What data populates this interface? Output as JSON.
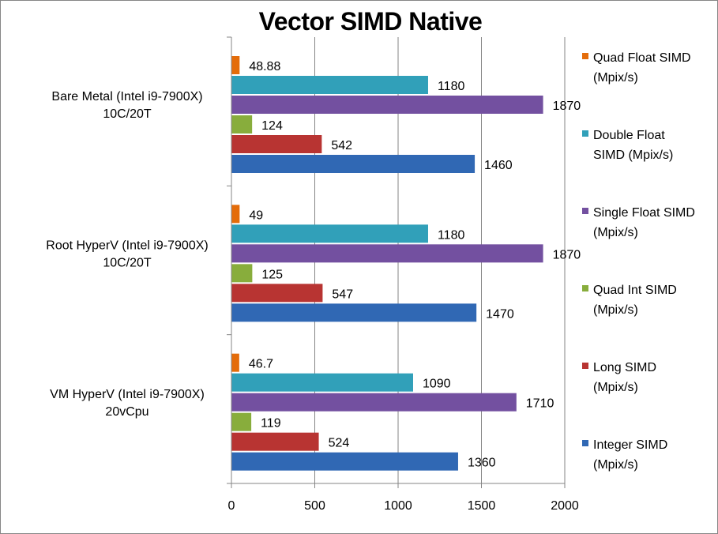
{
  "chart_data": {
    "type": "bar",
    "orientation": "horizontal",
    "title": "Vector SIMD Native",
    "xlabel": "",
    "ylabel": "",
    "xlim": [
      0,
      2000
    ],
    "xticks": [
      0,
      500,
      1000,
      1500,
      2000
    ],
    "grid": "vertical-major",
    "legend_position": "right",
    "categories": [
      {
        "lines": [
          "Bare Metal (Intel i9-7900X)",
          "10C/20T"
        ]
      },
      {
        "lines": [
          "Root HyperV (Intel i9-7900X)",
          "10C/20T"
        ]
      },
      {
        "lines": [
          "VM HyperV (Intel i9-7900X)",
          "20vCpu"
        ]
      }
    ],
    "series": [
      {
        "name": "Quad Float SIMD (Mpix/s)",
        "legend_lines": [
          "Quad Float SIMD",
          "(Mpix/s)"
        ],
        "color": "#E46C0A",
        "values": [
          48.88,
          49,
          46.7
        ],
        "labels": [
          "48.88",
          "49",
          "46.7"
        ]
      },
      {
        "name": "Double Float SIMD (Mpix/s)",
        "legend_lines": [
          "Double Float",
          "SIMD (Mpix/s)"
        ],
        "color": "#31A0B9",
        "values": [
          1180,
          1180,
          1090
        ],
        "labels": [
          "1180",
          "1180",
          "1090"
        ]
      },
      {
        "name": "Single Float SIMD (Mpix/s)",
        "legend_lines": [
          "Single Float SIMD",
          "(Mpix/s)"
        ],
        "color": "#7350A0",
        "values": [
          1870,
          1870,
          1710
        ],
        "labels": [
          "1870",
          "1870",
          "1710"
        ]
      },
      {
        "name": "Quad Int SIMD (Mpix/s)",
        "legend_lines": [
          "Quad Int SIMD",
          "(Mpix/s)"
        ],
        "color": "#88AD3C",
        "values": [
          124,
          125,
          119
        ],
        "labels": [
          "124",
          "125",
          "119"
        ]
      },
      {
        "name": "Long SIMD (Mpix/s)",
        "legend_lines": [
          "Long SIMD",
          "(Mpix/s)"
        ],
        "color": "#B83432",
        "values": [
          542,
          547,
          524
        ],
        "labels": [
          "542",
          "547",
          "524"
        ]
      },
      {
        "name": "Integer SIMD (Mpix/s)",
        "legend_lines": [
          "Integer SIMD",
          "(Mpix/s)"
        ],
        "color": "#3068B4",
        "values": [
          1460,
          1470,
          1360
        ],
        "labels": [
          "1460",
          "1470",
          "1360"
        ]
      }
    ]
  }
}
